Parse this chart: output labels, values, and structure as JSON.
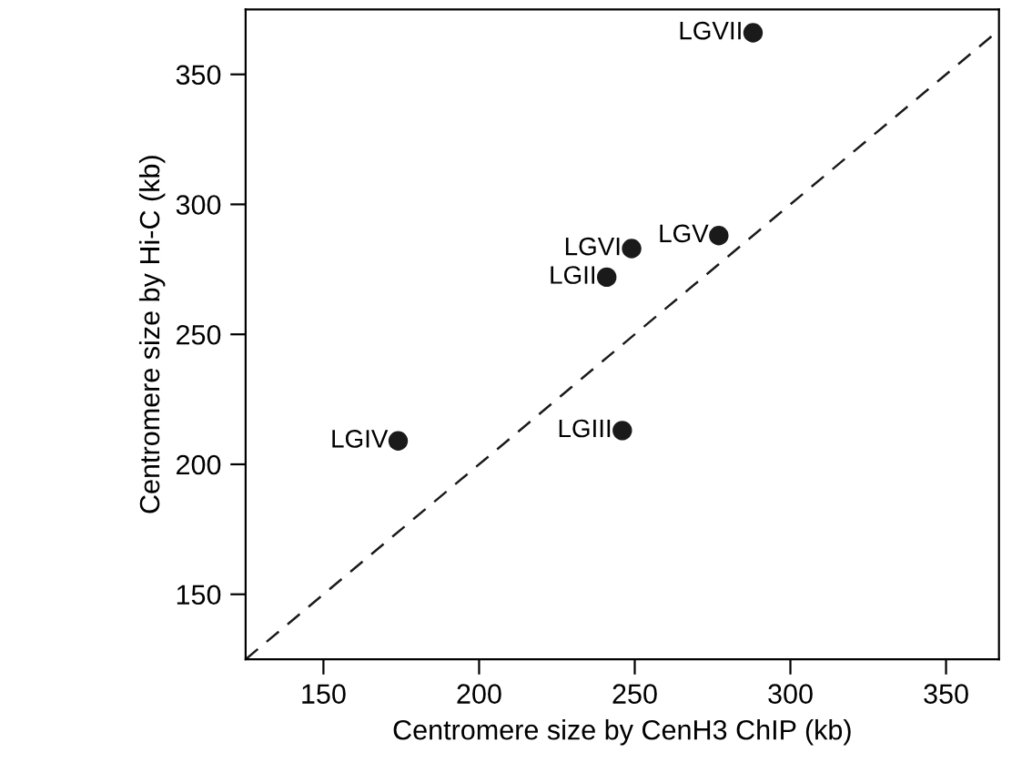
{
  "chart_data": {
    "type": "scatter",
    "xlabel": "Centromere size by CenH3 ChIP (kb)",
    "ylabel": "Centromere size by Hi-C (kb)",
    "series": [
      {
        "color": "#1a1a1a",
        "marker": "circle",
        "x": [
          174,
          241,
          246,
          249,
          277,
          288
        ],
        "values": [
          209,
          272,
          213,
          283,
          288,
          366
        ]
      },
      {
        "type": "line",
        "color": "#1a1a1a",
        "line_style": "dashed",
        "marker": "none",
        "x": [
          125,
          367
        ],
        "values": [
          125,
          367
        ]
      }
    ],
    "annotations": [
      {
        "text": "LGIV",
        "x": 174,
        "y": 209
      },
      {
        "text": "LGII",
        "x": 241,
        "y": 272
      },
      {
        "text": "LGIII",
        "x": 246,
        "y": 213
      },
      {
        "text": "LGVI",
        "x": 249,
        "y": 283
      },
      {
        "text": "LGV",
        "x": 277,
        "y": 288
      },
      {
        "text": "LGVII",
        "x": 288,
        "y": 366
      }
    ],
    "xlim": [
      125,
      367
    ],
    "ylim": [
      125,
      375
    ],
    "xticks": [
      150,
      200,
      250,
      300,
      350
    ],
    "yticks": [
      150,
      200,
      250,
      300,
      350
    ],
    "grid": false,
    "legend": false
  }
}
